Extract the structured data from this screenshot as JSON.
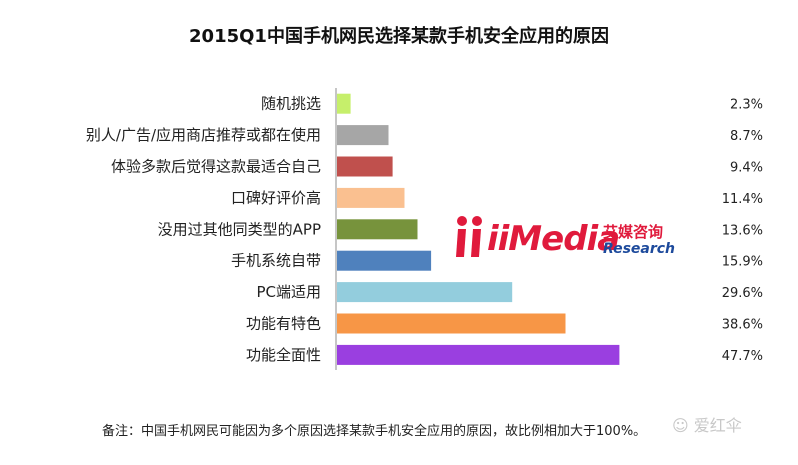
{
  "chart_data": {
    "type": "bar",
    "orientation": "horizontal",
    "title": "2015Q1中国手机网民选择某款手机安全应用的原因",
    "categories": [
      "随机挑选",
      "别人/广告/应用商店推荐或都在使用",
      "体验多款后觉得这款最适合自己",
      "口碑好评价高",
      "没用过其他同类型的APP",
      "手机系统自带",
      "PC端适用",
      "功能有特色",
      "功能全面性"
    ],
    "values": [
      2.3,
      8.7,
      9.4,
      11.4,
      13.6,
      15.9,
      29.6,
      38.6,
      47.7
    ],
    "value_labels": [
      "2.3%",
      "8.7%",
      "9.4%",
      "11.4%",
      "13.6%",
      "15.9%",
      "29.6%",
      "38.6%",
      "47.7%"
    ],
    "colors": [
      "#c6ef6b",
      "#a6a6a6",
      "#c0504d",
      "#fac090",
      "#77933c",
      "#4f81bd",
      "#93cddd",
      "#f79646",
      "#9a3fe0"
    ],
    "xlim": [
      0,
      50
    ],
    "grid": false,
    "legend": "none",
    "footnote": "备注：中国手机网民可能因为多个原因选择某款手机安全应用的原因，故比例相加大于100%。"
  },
  "logo": {
    "brand": "iiMedia",
    "cn": "艾媒咨询",
    "en": "Research"
  },
  "watermark": "爱红伞"
}
